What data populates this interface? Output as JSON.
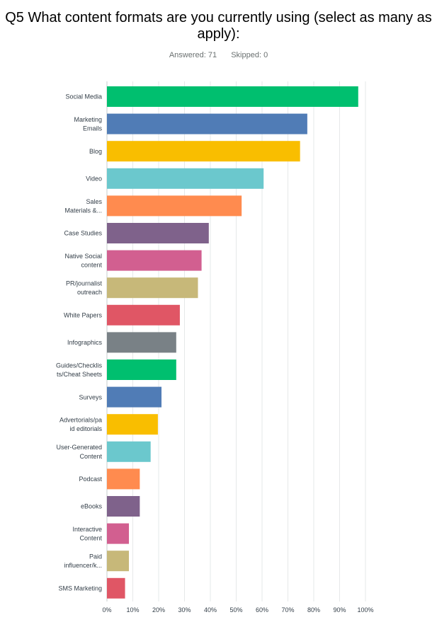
{
  "header": {
    "title": "Q5 What content formats are you currently using (select as many as apply):",
    "answered_label": "Answered: 71",
    "skipped_label": "Skipped: 0"
  },
  "chart_data": {
    "type": "bar",
    "orientation": "horizontal",
    "title": "Q5 What content formats are you currently using (select as many as apply):",
    "xlabel": "",
    "ylabel": "",
    "xlim": [
      0,
      100
    ],
    "x_ticks": [
      "0%",
      "10%",
      "20%",
      "30%",
      "40%",
      "50%",
      "60%",
      "70%",
      "80%",
      "90%",
      "100%"
    ],
    "grid": "vertical",
    "categories": [
      [
        "Social Media"
      ],
      [
        "Marketing",
        "Emails"
      ],
      [
        "Blog"
      ],
      [
        "Video"
      ],
      [
        "Sales",
        "Materials &..."
      ],
      [
        "Case Studies"
      ],
      [
        "Native Social",
        "content"
      ],
      [
        "PR/journalist",
        "outreach"
      ],
      [
        "White Papers"
      ],
      [
        "Infographics"
      ],
      [
        "Guides/Checklis",
        "ts/Cheat Sheets"
      ],
      [
        "Surveys"
      ],
      [
        "Advertorials/pa",
        "id editorials"
      ],
      [
        "User-Generated",
        "Content"
      ],
      [
        "Podcast"
      ],
      [
        "eBooks"
      ],
      [
        "Interactive",
        "Content"
      ],
      [
        "Paid",
        "influencer/k..."
      ],
      [
        "SMS Marketing"
      ]
    ],
    "values": [
      97.2,
      77.5,
      74.7,
      60.6,
      52.1,
      39.4,
      36.6,
      35.2,
      28.2,
      26.8,
      26.8,
      21.1,
      19.7,
      16.9,
      12.7,
      12.7,
      8.5,
      8.5,
      7.0
    ],
    "colors": [
      "#00bf6f",
      "#507cb6",
      "#f9be00",
      "#6bc8cd",
      "#ff8b4f",
      "#7f628b",
      "#d25f90",
      "#c7b879",
      "#e05665",
      "#798186",
      "#00bf6f",
      "#507cb6",
      "#f9be00",
      "#6bc8cd",
      "#ff8b4f",
      "#7f628b",
      "#d25f90",
      "#c7b879",
      "#e05665"
    ]
  }
}
